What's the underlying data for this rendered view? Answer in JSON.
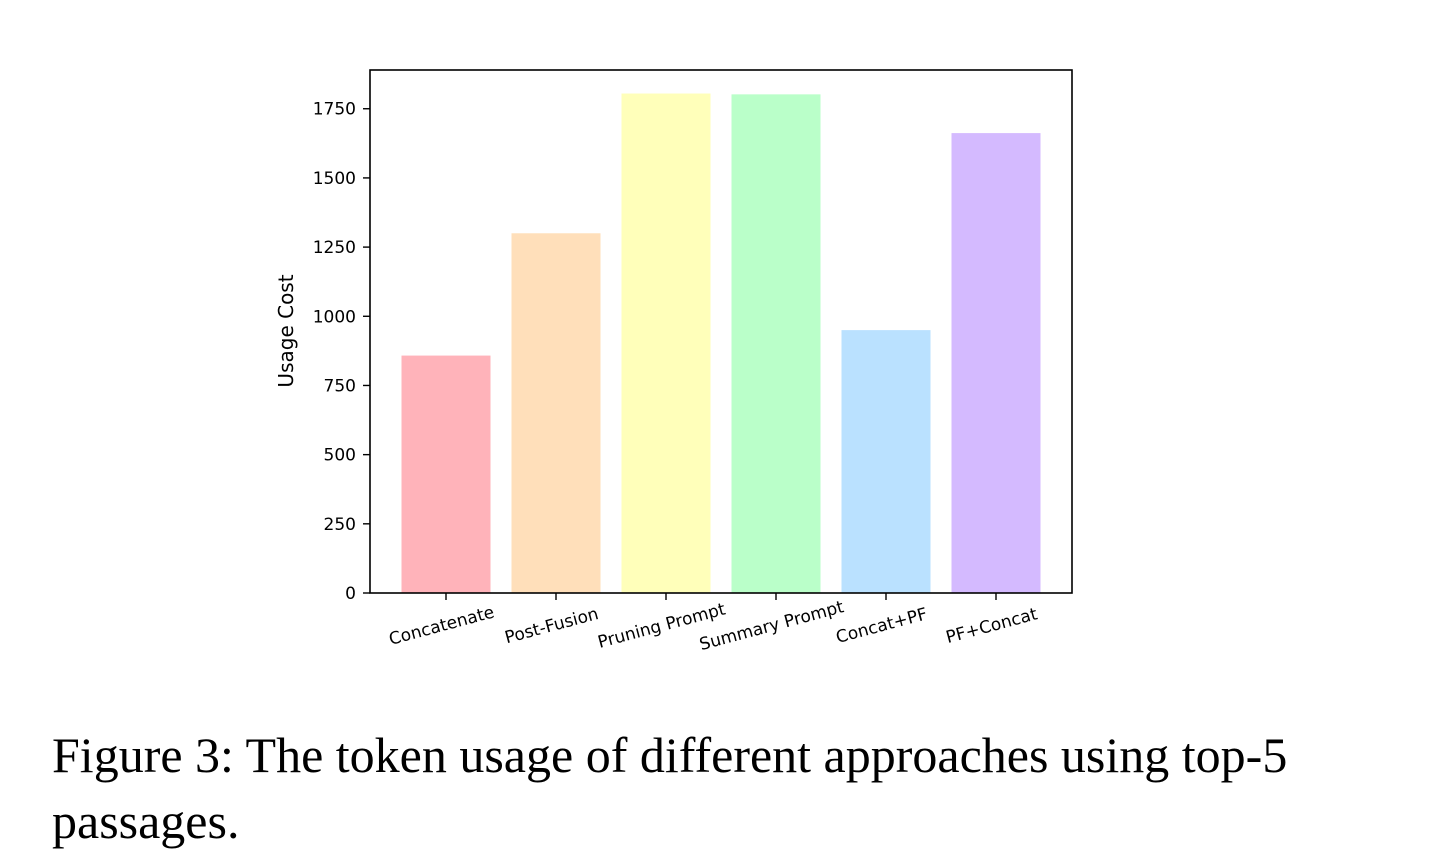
{
  "chart_data": {
    "type": "bar",
    "categories": [
      "Concatenate",
      "Post-Fusion",
      "Pruning Prompt",
      "Summary Prompt",
      "Concat+PF",
      "PF+Concat"
    ],
    "values": [
      858,
      1300,
      1805,
      1802,
      950,
      1662
    ],
    "colors": [
      "#ffb3ba",
      "#ffdfba",
      "#ffffba",
      "#baffc9",
      "#bae1ff",
      "#d4baff"
    ],
    "ylabel": "Usage Cost",
    "xlabel": "",
    "ylim": [
      0,
      1890
    ],
    "yticks": [
      0,
      250,
      500,
      750,
      1000,
      1250,
      1500,
      1750
    ],
    "grid": false
  },
  "caption": "Figure 3: The token usage of different approaches using top-5 passages."
}
